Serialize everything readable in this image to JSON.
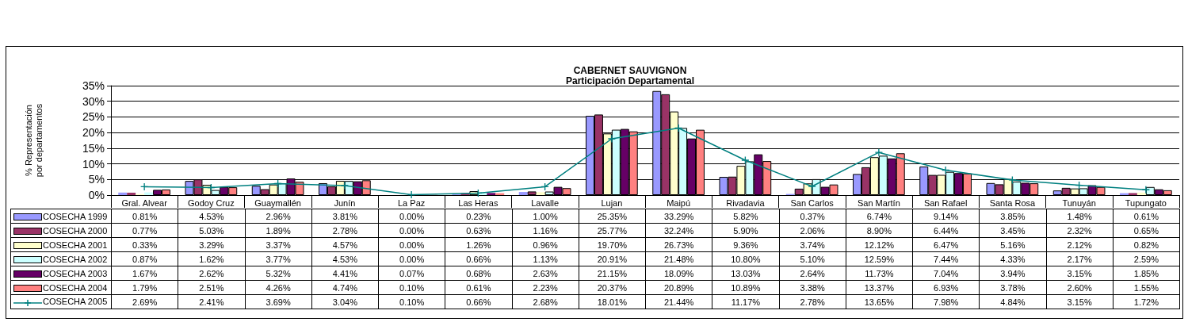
{
  "chart_data": {
    "type": "bar",
    "title": "CABERNET SAUVIGNON",
    "subtitle": "Participación Departamental",
    "ylabel": "% Representación\npor departamentos",
    "categories": [
      "Gral. Alvear",
      "Godoy Cruz",
      "Guaymallén",
      "Junín",
      "La Paz",
      "Las Heras",
      "Lavalle",
      "Lujan",
      "Maipú",
      "Rivadavia",
      "San Carlos",
      "San Martín",
      "San Rafael",
      "Santa Rosa",
      "Tunuyán",
      "Tupungato"
    ],
    "ylim": [
      0,
      35
    ],
    "yticks": [
      {
        "value": 0,
        "label": "0%"
      },
      {
        "value": 5,
        "label": "5%"
      },
      {
        "value": 10,
        "label": "10%"
      },
      {
        "value": 15,
        "label": "15%"
      },
      {
        "value": 20,
        "label": "20%"
      },
      {
        "value": 25,
        "label": "25%"
      },
      {
        "value": 30,
        "label": "30%"
      },
      {
        "value": 35,
        "label": "35%"
      }
    ],
    "grid": "y",
    "legend": "bottom left",
    "marker": "cross",
    "series": [
      {
        "name": "COSECHA 1999",
        "color": "#9999ff",
        "values": [
          0.81,
          4.53,
          2.96,
          3.81,
          0.0,
          0.23,
          1.0,
          25.35,
          33.29,
          5.82,
          0.37,
          6.74,
          9.14,
          3.85,
          1.48,
          0.61
        ],
        "value_labels": [
          "0.81%",
          "4.53%",
          "2.96%",
          "3.81%",
          "0.00%",
          "0.23%",
          "1.00%",
          "25.35%",
          "33.29%",
          "5.82%",
          "0.37%",
          "6.74%",
          "9.14%",
          "3.85%",
          "1.48%",
          "0.61%"
        ]
      },
      {
        "name": "COSECHA 2000",
        "color": "#993366",
        "values": [
          0.77,
          5.03,
          1.89,
          2.78,
          0.0,
          0.63,
          1.16,
          25.77,
          32.24,
          5.9,
          2.06,
          8.9,
          6.44,
          3.45,
          2.32,
          0.65
        ],
        "value_labels": [
          "0.77%",
          "5.03%",
          "1.89%",
          "2.78%",
          "0.00%",
          "0.63%",
          "1.16%",
          "25.77%",
          "32.24%",
          "5.90%",
          "2.06%",
          "8.90%",
          "6.44%",
          "3.45%",
          "2.32%",
          "0.65%"
        ]
      },
      {
        "name": "COSECHA 2001",
        "color": "#ffffcc",
        "values": [
          0.33,
          3.29,
          3.37,
          4.57,
          0.0,
          1.26,
          0.96,
          19.7,
          26.73,
          9.36,
          3.74,
          12.12,
          6.47,
          5.16,
          2.12,
          0.82
        ],
        "value_labels": [
          "0.33%",
          "3.29%",
          "3.37%",
          "4.57%",
          "0.00%",
          "1.26%",
          "0.96%",
          "19.70%",
          "26.73%",
          "9.36%",
          "3.74%",
          "12.12%",
          "6.47%",
          "5.16%",
          "2.12%",
          "0.82%"
        ]
      },
      {
        "name": "COSECHA 2002",
        "color": "#ccffff",
        "values": [
          0.87,
          1.62,
          3.77,
          4.53,
          0.0,
          0.66,
          1.13,
          20.91,
          21.48,
          10.8,
          5.1,
          12.59,
          7.44,
          4.33,
          2.17,
          2.59
        ],
        "value_labels": [
          "0.87%",
          "1.62%",
          "3.77%",
          "4.53%",
          "0.00%",
          "0.66%",
          "1.13%",
          "20.91%",
          "21.48%",
          "10.80%",
          "5.10%",
          "12.59%",
          "7.44%",
          "4.33%",
          "2.17%",
          "2.59%"
        ]
      },
      {
        "name": "COSECHA 2003",
        "color": "#660066",
        "values": [
          1.67,
          2.62,
          5.32,
          4.41,
          0.07,
          0.68,
          2.63,
          21.15,
          18.09,
          13.03,
          2.64,
          11.73,
          7.04,
          3.94,
          3.15,
          1.85
        ],
        "value_labels": [
          "1.67%",
          "2.62%",
          "5.32%",
          "4.41%",
          "0.07%",
          "0.68%",
          "2.63%",
          "21.15%",
          "18.09%",
          "13.03%",
          "2.64%",
          "11.73%",
          "7.04%",
          "3.94%",
          "3.15%",
          "1.85%"
        ]
      },
      {
        "name": "COSECHA 2004",
        "color": "#ff8080",
        "values": [
          1.79,
          2.51,
          4.26,
          4.74,
          0.1,
          0.61,
          2.23,
          20.37,
          20.89,
          10.89,
          3.38,
          13.37,
          6.93,
          3.78,
          2.6,
          1.55
        ],
        "value_labels": [
          "1.79%",
          "2.51%",
          "4.26%",
          "4.74%",
          "0.10%",
          "0.61%",
          "2.23%",
          "20.37%",
          "20.89%",
          "10.89%",
          "3.38%",
          "13.37%",
          "6.93%",
          "3.78%",
          "2.60%",
          "1.55%"
        ]
      },
      {
        "name": "COSECHA 2005",
        "type": "line",
        "color": "#008080",
        "values": [
          2.69,
          2.41,
          3.69,
          3.04,
          0.1,
          0.66,
          2.68,
          18.01,
          21.44,
          11.17,
          2.78,
          13.65,
          7.98,
          4.84,
          3.15,
          1.72
        ],
        "value_labels": [
          "2.69%",
          "2.41%",
          "3.69%",
          "3.04%",
          "0.10%",
          "0.66%",
          "2.68%",
          "18.01%",
          "21.44%",
          "11.17%",
          "2.78%",
          "13.65%",
          "7.98%",
          "4.84%",
          "3.15%",
          "1.72%"
        ]
      }
    ]
  }
}
